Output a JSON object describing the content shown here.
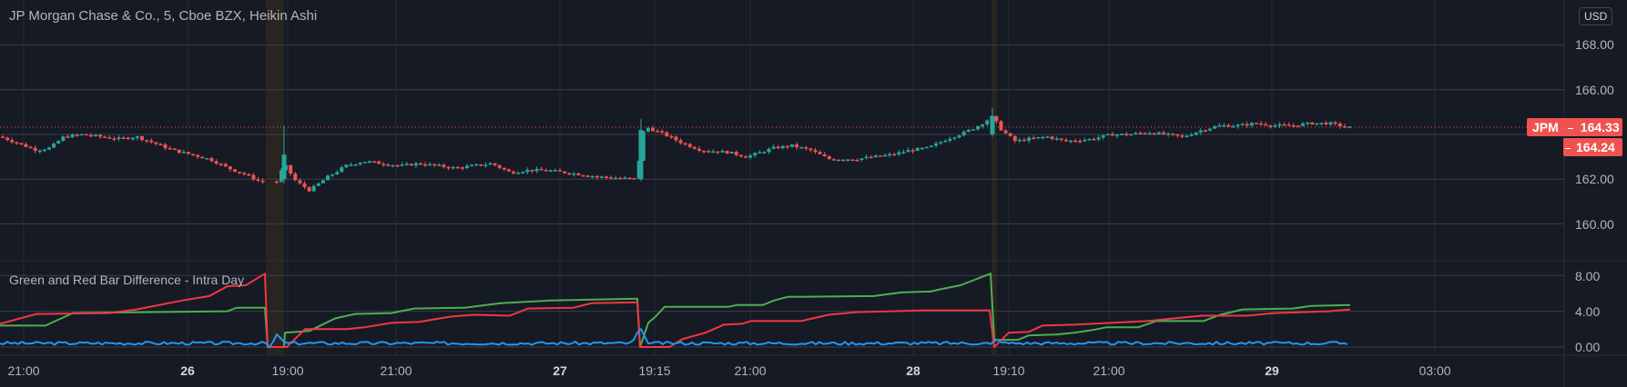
{
  "header": {
    "title": "JP Morgan Chase & Co., 5, Cboe BZX, Heikin Ashi",
    "currency": "USD"
  },
  "main_pane": {
    "price_axis": [
      "168.00",
      "166.00",
      "162.00",
      "160.00"
    ],
    "price_tag": {
      "symbol": "JPM",
      "last": "164.33",
      "secondary": "164.24"
    }
  },
  "indicator_pane": {
    "title": "Green and Red Bar Difference - Intra Day",
    "axis": [
      "8.00",
      "4.00",
      "0.00"
    ]
  },
  "time_axis": [
    {
      "label": "21:00",
      "bold": false
    },
    {
      "label": "26",
      "bold": true
    },
    {
      "label": "19:00",
      "bold": false
    },
    {
      "label": "21:00",
      "bold": false
    },
    {
      "label": "27",
      "bold": true
    },
    {
      "label": "19:15",
      "bold": false
    },
    {
      "label": "21:00",
      "bold": false
    },
    {
      "label": "28",
      "bold": true
    },
    {
      "label": "19:10",
      "bold": false
    },
    {
      "label": "21:00",
      "bold": false
    },
    {
      "label": "29",
      "bold": true
    },
    {
      "label": "03:00",
      "bold": false
    }
  ],
  "colors": {
    "up": "#26a69a",
    "down": "#ef5350",
    "green_line": "#4caf50",
    "red_line": "#f23645",
    "blue_line": "#2196f3",
    "background": "#161a25",
    "session_band": "#2a2620"
  },
  "chart_data": [
    {
      "type": "candlestick",
      "title": "JP Morgan Chase & Co., 5, Cboe BZX, Heikin Ashi",
      "ylabel": "USD",
      "ylim": [
        159,
        168.5
      ],
      "yticks": [
        160,
        162,
        164,
        166,
        168
      ],
      "x_ticks": [
        "21:00",
        "26",
        "19:00",
        "21:00",
        "27",
        "19:15",
        "21:00",
        "28",
        "19:10",
        "21:00",
        "29",
        "03:00"
      ],
      "last_price": 164.33,
      "secondary_price": 164.24,
      "close_path": [
        [
          0,
          163.9
        ],
        [
          20,
          163.6
        ],
        [
          40,
          163.3
        ],
        [
          55,
          163.4
        ],
        [
          70,
          163.9
        ],
        [
          90,
          164.0
        ],
        [
          110,
          163.9
        ],
        [
          130,
          163.8
        ],
        [
          150,
          163.9
        ],
        [
          170,
          163.6
        ],
        [
          190,
          163.3
        ],
        [
          210,
          163.1
        ],
        [
          230,
          162.9
        ],
        [
          250,
          162.5
        ],
        [
          270,
          162.2
        ],
        [
          285,
          161.9
        ],
        [
          305,
          161.9
        ],
        [
          312,
          162.7
        ],
        [
          325,
          161.9
        ],
        [
          340,
          161.5
        ],
        [
          360,
          162.1
        ],
        [
          380,
          162.6
        ],
        [
          400,
          162.8
        ],
        [
          420,
          162.7
        ],
        [
          440,
          162.6
        ],
        [
          460,
          162.7
        ],
        [
          480,
          162.6
        ],
        [
          500,
          162.5
        ],
        [
          520,
          162.6
        ],
        [
          540,
          162.7
        ],
        [
          560,
          162.3
        ],
        [
          580,
          162.4
        ],
        [
          600,
          162.4
        ],
        [
          620,
          162.3
        ],
        [
          640,
          162.2
        ],
        [
          660,
          162.1
        ],
        [
          700,
          162.0
        ],
        [
          704,
          164.0
        ],
        [
          712,
          164.3
        ],
        [
          730,
          164.0
        ],
        [
          750,
          163.6
        ],
        [
          770,
          163.3
        ],
        [
          800,
          163.2
        ],
        [
          820,
          163.0
        ],
        [
          850,
          163.4
        ],
        [
          870,
          163.5
        ],
        [
          890,
          163.3
        ],
        [
          910,
          162.9
        ],
        [
          940,
          162.9
        ],
        [
          960,
          163.0
        ],
        [
          980,
          163.1
        ],
        [
          1000,
          163.3
        ],
        [
          1020,
          163.4
        ],
        [
          1040,
          163.8
        ],
        [
          1060,
          164.1
        ],
        [
          1075,
          164.4
        ],
        [
          1090,
          164.8
        ],
        [
          1100,
          164.2
        ],
        [
          1115,
          163.7
        ],
        [
          1130,
          163.8
        ],
        [
          1150,
          163.9
        ],
        [
          1170,
          163.7
        ],
        [
          1200,
          163.8
        ],
        [
          1220,
          164.0
        ],
        [
          1240,
          164.0
        ],
        [
          1260,
          164.1
        ],
        [
          1280,
          164.0
        ],
        [
          1300,
          163.9
        ],
        [
          1320,
          164.2
        ],
        [
          1340,
          164.4
        ],
        [
          1360,
          164.4
        ],
        [
          1380,
          164.5
        ],
        [
          1400,
          164.4
        ],
        [
          1420,
          164.4
        ],
        [
          1440,
          164.5
        ],
        [
          1460,
          164.5
        ],
        [
          1483,
          164.3
        ]
      ]
    },
    {
      "type": "line",
      "title": "Green and Red Bar Difference - Intra Day",
      "ylim": [
        -0.5,
        9.0
      ],
      "yticks": [
        0,
        4,
        8
      ],
      "series": [
        {
          "name": "green",
          "color": "#4caf50",
          "points": [
            [
              0,
              2.4
            ],
            [
              50,
              2.4
            ],
            [
              80,
              3.8
            ],
            [
              250,
              4.0
            ],
            [
              260,
              4.4
            ],
            [
              291,
              4.4
            ],
            [
              294,
              0
            ],
            [
              312,
              0
            ],
            [
              313,
              1.6
            ],
            [
              340,
              1.8
            ],
            [
              350,
              2.3
            ],
            [
              368,
              3.2
            ],
            [
              390,
              3.7
            ],
            [
              430,
              3.8
            ],
            [
              455,
              4.3
            ],
            [
              510,
              4.4
            ],
            [
              550,
              4.9
            ],
            [
              605,
              5.2
            ],
            [
              700,
              5.4
            ],
            [
              703,
              0
            ],
            [
              712,
              2.7
            ],
            [
              720,
              3.4
            ],
            [
              730,
              4.5
            ],
            [
              800,
              4.5
            ],
            [
              810,
              4.7
            ],
            [
              838,
              4.7
            ],
            [
              850,
              5.2
            ],
            [
              865,
              5.6
            ],
            [
              960,
              5.7
            ],
            [
              990,
              6.1
            ],
            [
              1022,
              6.2
            ],
            [
              1035,
              6.5
            ],
            [
              1055,
              6.9
            ],
            [
              1075,
              7.7
            ],
            [
              1088,
              8.2
            ],
            [
              1092,
              0.8
            ],
            [
              1118,
              0.8
            ],
            [
              1130,
              1.3
            ],
            [
              1160,
              1.4
            ],
            [
              1180,
              1.6
            ],
            [
              1200,
              1.9
            ],
            [
              1215,
              2.2
            ],
            [
              1250,
              2.2
            ],
            [
              1270,
              2.9
            ],
            [
              1322,
              2.9
            ],
            [
              1340,
              3.6
            ],
            [
              1365,
              4.2
            ],
            [
              1420,
              4.3
            ],
            [
              1440,
              4.6
            ],
            [
              1483,
              4.7
            ]
          ]
        },
        {
          "name": "red",
          "color": "#f23645",
          "points": [
            [
              0,
              2.6
            ],
            [
              40,
              3.7
            ],
            [
              120,
              3.8
            ],
            [
              150,
              4.2
            ],
            [
              200,
              5.2
            ],
            [
              230,
              5.7
            ],
            [
              250,
              6.8
            ],
            [
              270,
              6.9
            ],
            [
              291,
              8.2
            ],
            [
              294,
              0
            ],
            [
              315,
              0
            ],
            [
              335,
              2.0
            ],
            [
              380,
              2.0
            ],
            [
              400,
              2.2
            ],
            [
              430,
              2.7
            ],
            [
              460,
              2.8
            ],
            [
              495,
              3.4
            ],
            [
              520,
              3.6
            ],
            [
              560,
              3.5
            ],
            [
              580,
              4.3
            ],
            [
              630,
              4.4
            ],
            [
              650,
              4.9
            ],
            [
              700,
              5.0
            ],
            [
              703,
              0
            ],
            [
              735,
              0
            ],
            [
              750,
              0.9
            ],
            [
              775,
              1.6
            ],
            [
              795,
              2.5
            ],
            [
              815,
              2.6
            ],
            [
              825,
              2.9
            ],
            [
              880,
              2.9
            ],
            [
              910,
              3.6
            ],
            [
              940,
              3.9
            ],
            [
              980,
              4.0
            ],
            [
              1015,
              4.1
            ],
            [
              1087,
              4.1
            ],
            [
              1092,
              0
            ],
            [
              1108,
              1.6
            ],
            [
              1130,
              1.7
            ],
            [
              1145,
              2.4
            ],
            [
              1180,
              2.5
            ],
            [
              1220,
              2.7
            ],
            [
              1260,
              2.9
            ],
            [
              1320,
              3.5
            ],
            [
              1370,
              3.5
            ],
            [
              1400,
              3.8
            ],
            [
              1460,
              4.0
            ],
            [
              1483,
              4.2
            ]
          ]
        },
        {
          "name": "blue",
          "color": "#2196f3",
          "points": "near 0.0–0.5 noise, spikes: 1.6 at x≈305, 2.2 at x≈703, 0.9 at x≈1095"
        }
      ]
    }
  ]
}
